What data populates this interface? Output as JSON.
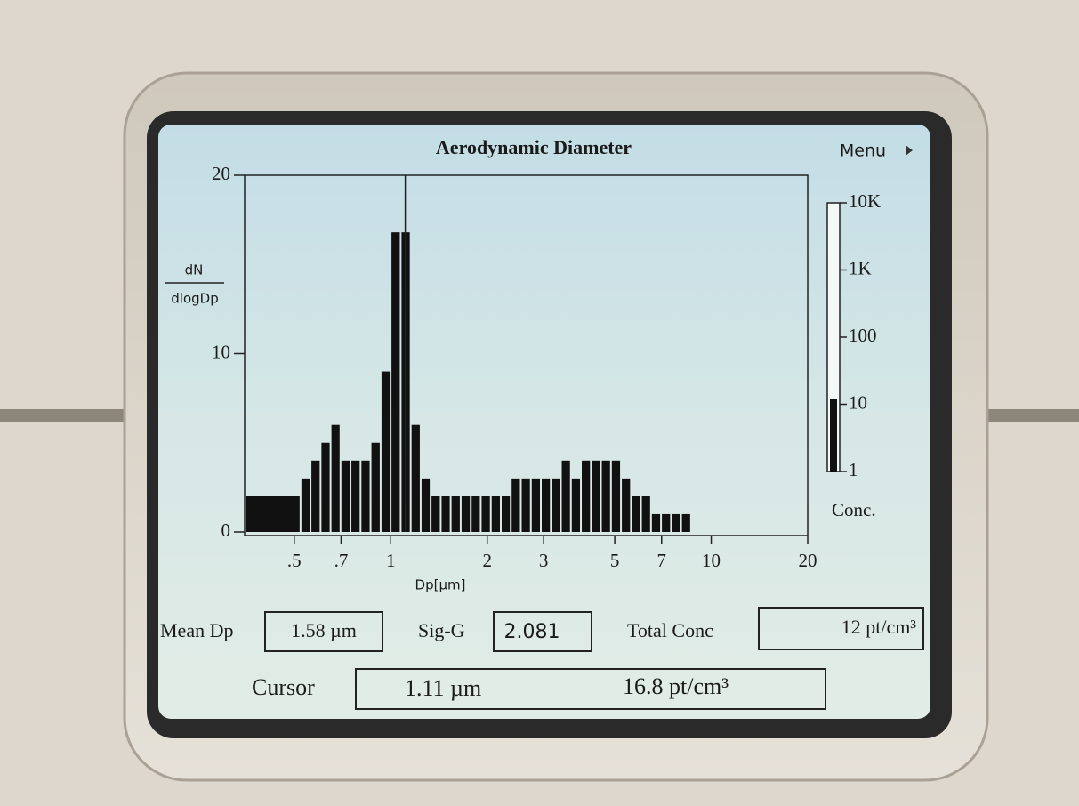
{
  "screen": {
    "menu": "Menu",
    "readouts": {
      "mean_dp": {
        "label": "Mean Dp",
        "value": "1.58 µm"
      },
      "sig_g": {
        "label": "Sig-G",
        "value": "2.081"
      },
      "total_conc": {
        "label": "Total Conc",
        "value": "12 pt/cm³"
      },
      "cursor": {
        "label": "Cursor",
        "diameter": "1.11 µm",
        "concentration": "16.8 pt/cm³"
      }
    }
  },
  "chart_data": {
    "type": "histogram",
    "title": "Aerodynamic Diameter",
    "xlabel": "Dp[µm]",
    "ylabel": [
      "dN",
      "dlogDp"
    ],
    "xscale": "log",
    "color": "#111111",
    "bins": [
      0.35,
      0.523,
      0.562,
      0.604,
      0.649,
      0.697,
      0.749,
      0.805,
      0.865,
      0.93,
      0.999,
      1.074,
      1.154,
      1.24,
      1.332,
      1.432,
      1.538,
      1.653,
      1.777,
      1.909,
      2.052,
      2.205,
      2.369,
      2.546,
      2.736,
      2.94,
      3.159,
      3.395,
      3.648,
      3.92,
      4.213,
      4.527,
      4.865,
      5.228,
      5.618,
      6.037,
      6.487,
      6.971,
      7.491,
      8.05,
      8.65
    ],
    "values": [
      2,
      3,
      4,
      5,
      6,
      4,
      4,
      4,
      5,
      9,
      16.8,
      16.8,
      6,
      3,
      2,
      2,
      2,
      2,
      2,
      2,
      2,
      2,
      3,
      3,
      3,
      3,
      3,
      4,
      3,
      4,
      4,
      4,
      4,
      3,
      2,
      2,
      1,
      1,
      1,
      1
    ],
    "xlim": [
      0.35,
      20
    ],
    "xticks": [
      {
        "value": 0.5,
        "label": ".5"
      },
      {
        "value": 0.7,
        "label": ".7"
      },
      1,
      2,
      3,
      5,
      7,
      10,
      20
    ],
    "ylim": [
      0,
      20
    ],
    "yticks": [
      0,
      10,
      20
    ],
    "cursor_x": 1.11,
    "conc_scale": {
      "label": "Conc.",
      "scale": "log",
      "ylim": [
        1,
        10000
      ],
      "yticks": [
        1,
        10,
        100,
        {
          "value": 1000,
          "label": "1K"
        },
        {
          "value": 10000,
          "label": "10K"
        }
      ],
      "value": 12
    }
  }
}
